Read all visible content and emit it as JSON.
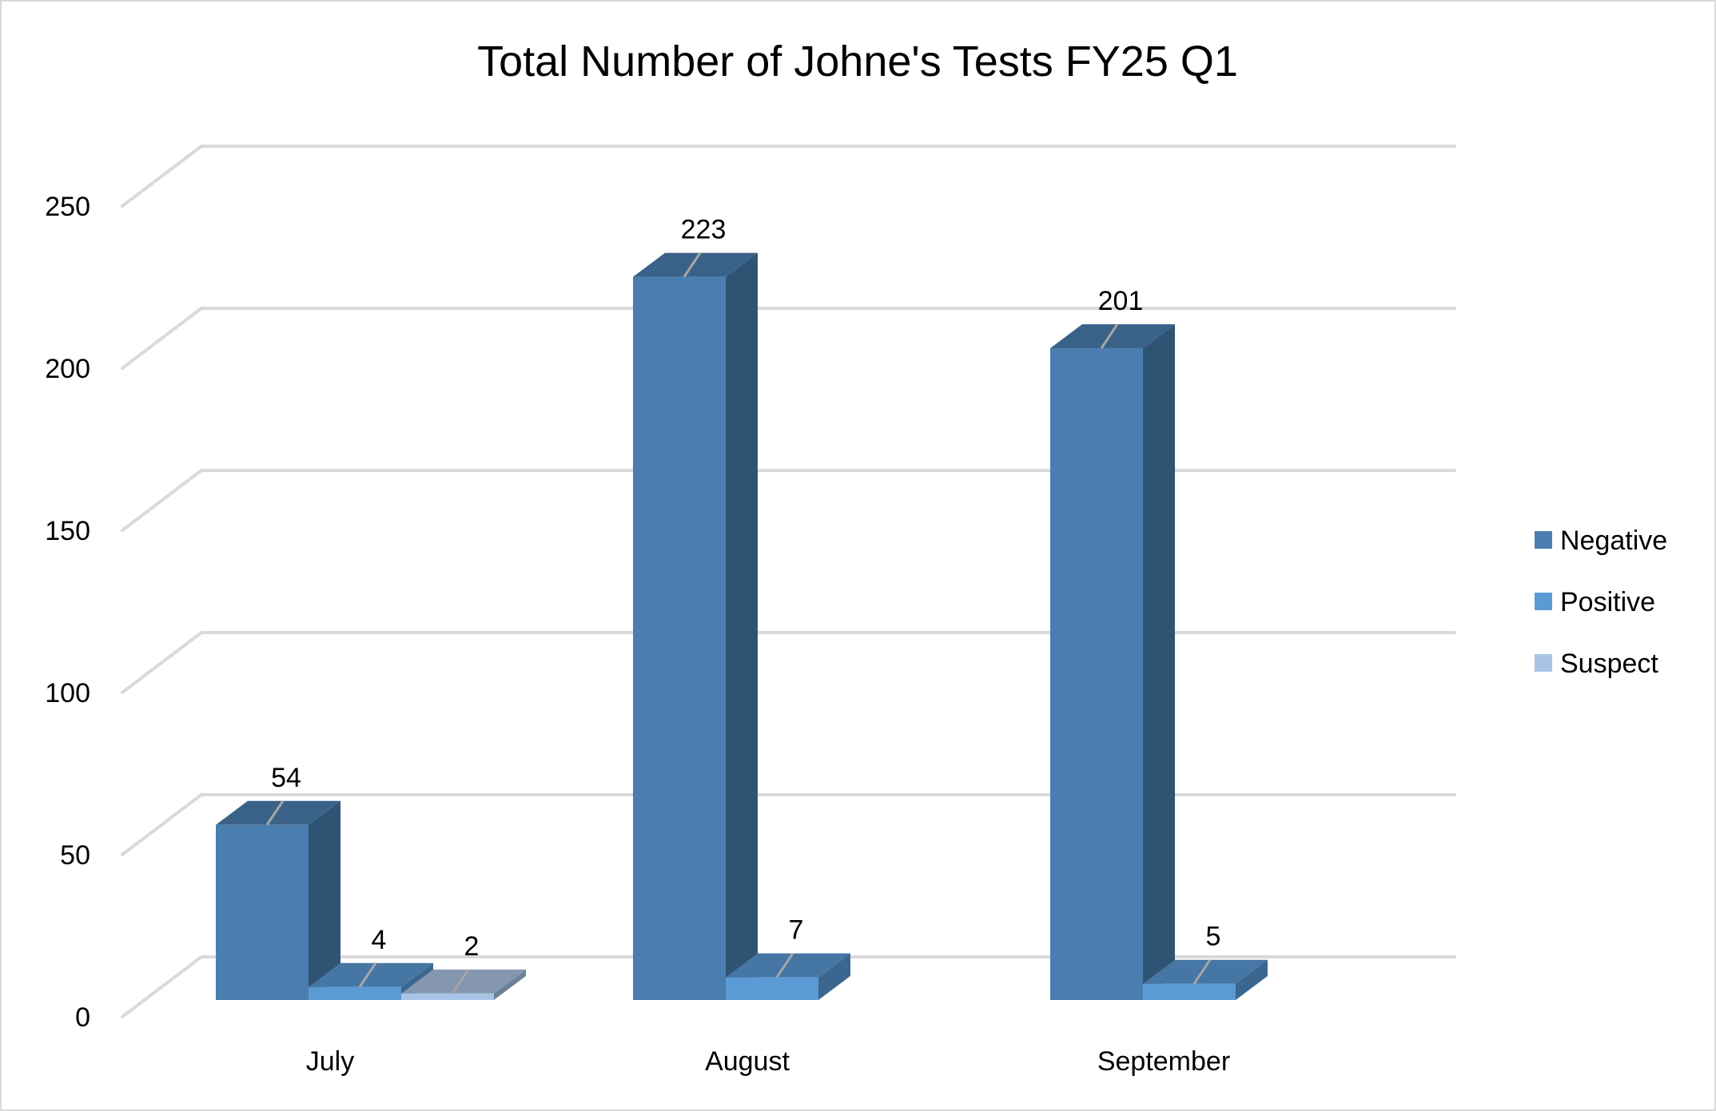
{
  "chart_data": {
    "type": "bar",
    "variant": "3d-clustered-column",
    "title": "Total Number of Johne's Tests FY25 Q1",
    "xlabel": "",
    "ylabel": "",
    "categories": [
      "July",
      "August",
      "September"
    ],
    "series": [
      {
        "name": "Negative",
        "values": [
          54,
          223,
          201
        ],
        "color": "#4a7eb0"
      },
      {
        "name": "Positive",
        "values": [
          4,
          7,
          5
        ],
        "color": "#5b9bd5"
      },
      {
        "name": "Suspect",
        "values": [
          2,
          null,
          null
        ],
        "color": "#a7c4e6"
      }
    ],
    "data_labels": {
      "July": [
        "54",
        "4",
        "2"
      ],
      "August": [
        "223",
        "7"
      ],
      "September": [
        "201",
        "5"
      ]
    },
    "ylim": [
      0,
      250
    ],
    "yticks": [
      0,
      50,
      100,
      150,
      200,
      250
    ],
    "ytick_labels": [
      "0",
      "50",
      "100",
      "150",
      "200",
      "250"
    ],
    "grid": true,
    "legend_position": "right"
  },
  "legend": {
    "items": [
      {
        "label": "Negative",
        "color": "#4a7eb0"
      },
      {
        "label": "Positive",
        "color": "#5b9bd5"
      },
      {
        "label": "Suspect",
        "color": "#a7c4e6"
      }
    ]
  },
  "colors": {
    "grid": "#d9d9d9",
    "leader_line": "#a6a6a6",
    "border": "#d9d9d9"
  }
}
